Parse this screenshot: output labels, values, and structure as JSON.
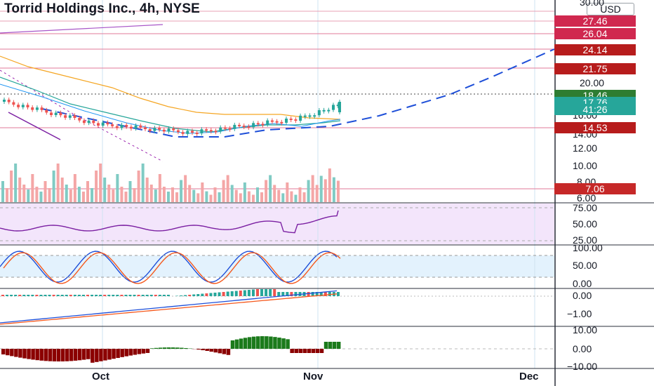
{
  "title": "Torrid Holdings Inc., 4h, NYSE",
  "currency": "USD",
  "x_labels": [
    "Oct",
    "Nov",
    "Dec"
  ],
  "price_axis": {
    "ticks": [
      "30.00",
      "20.00",
      "16.00",
      "14.00",
      "12.00",
      "10.00",
      "8.00",
      "6.00"
    ],
    "tags": [
      {
        "label": "27.46",
        "color": "#d0284f"
      },
      {
        "label": "26.04",
        "color": "#d0284f"
      },
      {
        "label": "24.14",
        "color": "#b71c1c"
      },
      {
        "label": "21.75",
        "color": "#b71c1c"
      },
      {
        "label": "18.46",
        "color": "#2e7d32"
      },
      {
        "label": "17.76",
        "color": "#26a69a"
      },
      {
        "label": "41:26",
        "color": "#26a69a"
      },
      {
        "label": "14.53",
        "color": "#b71c1c"
      },
      {
        "label": "7.06",
        "color": "#c62828"
      }
    ]
  },
  "rsi_axis": [
    "75.00",
    "50.00",
    "25.00"
  ],
  "stoch_axis": [
    "100.00",
    "50.00",
    "0.00"
  ],
  "macd_axis": [
    "0.00",
    "−1.00"
  ],
  "osc_axis": [
    "10.00",
    "0.00",
    "−10.00"
  ],
  "colors": {
    "up": "#26a69a",
    "down": "#ef5350",
    "ma_teal": "#26a69a",
    "ma_orange": "#f5a623",
    "trend_blue": "#1e4fd8",
    "rsi_line": "#7b1fa2",
    "rsi_band": "#f3e5fb",
    "stoch_band": "#e3f2fd",
    "osc_green": "#1b7a1b",
    "osc_red": "#8b0000"
  }
}
